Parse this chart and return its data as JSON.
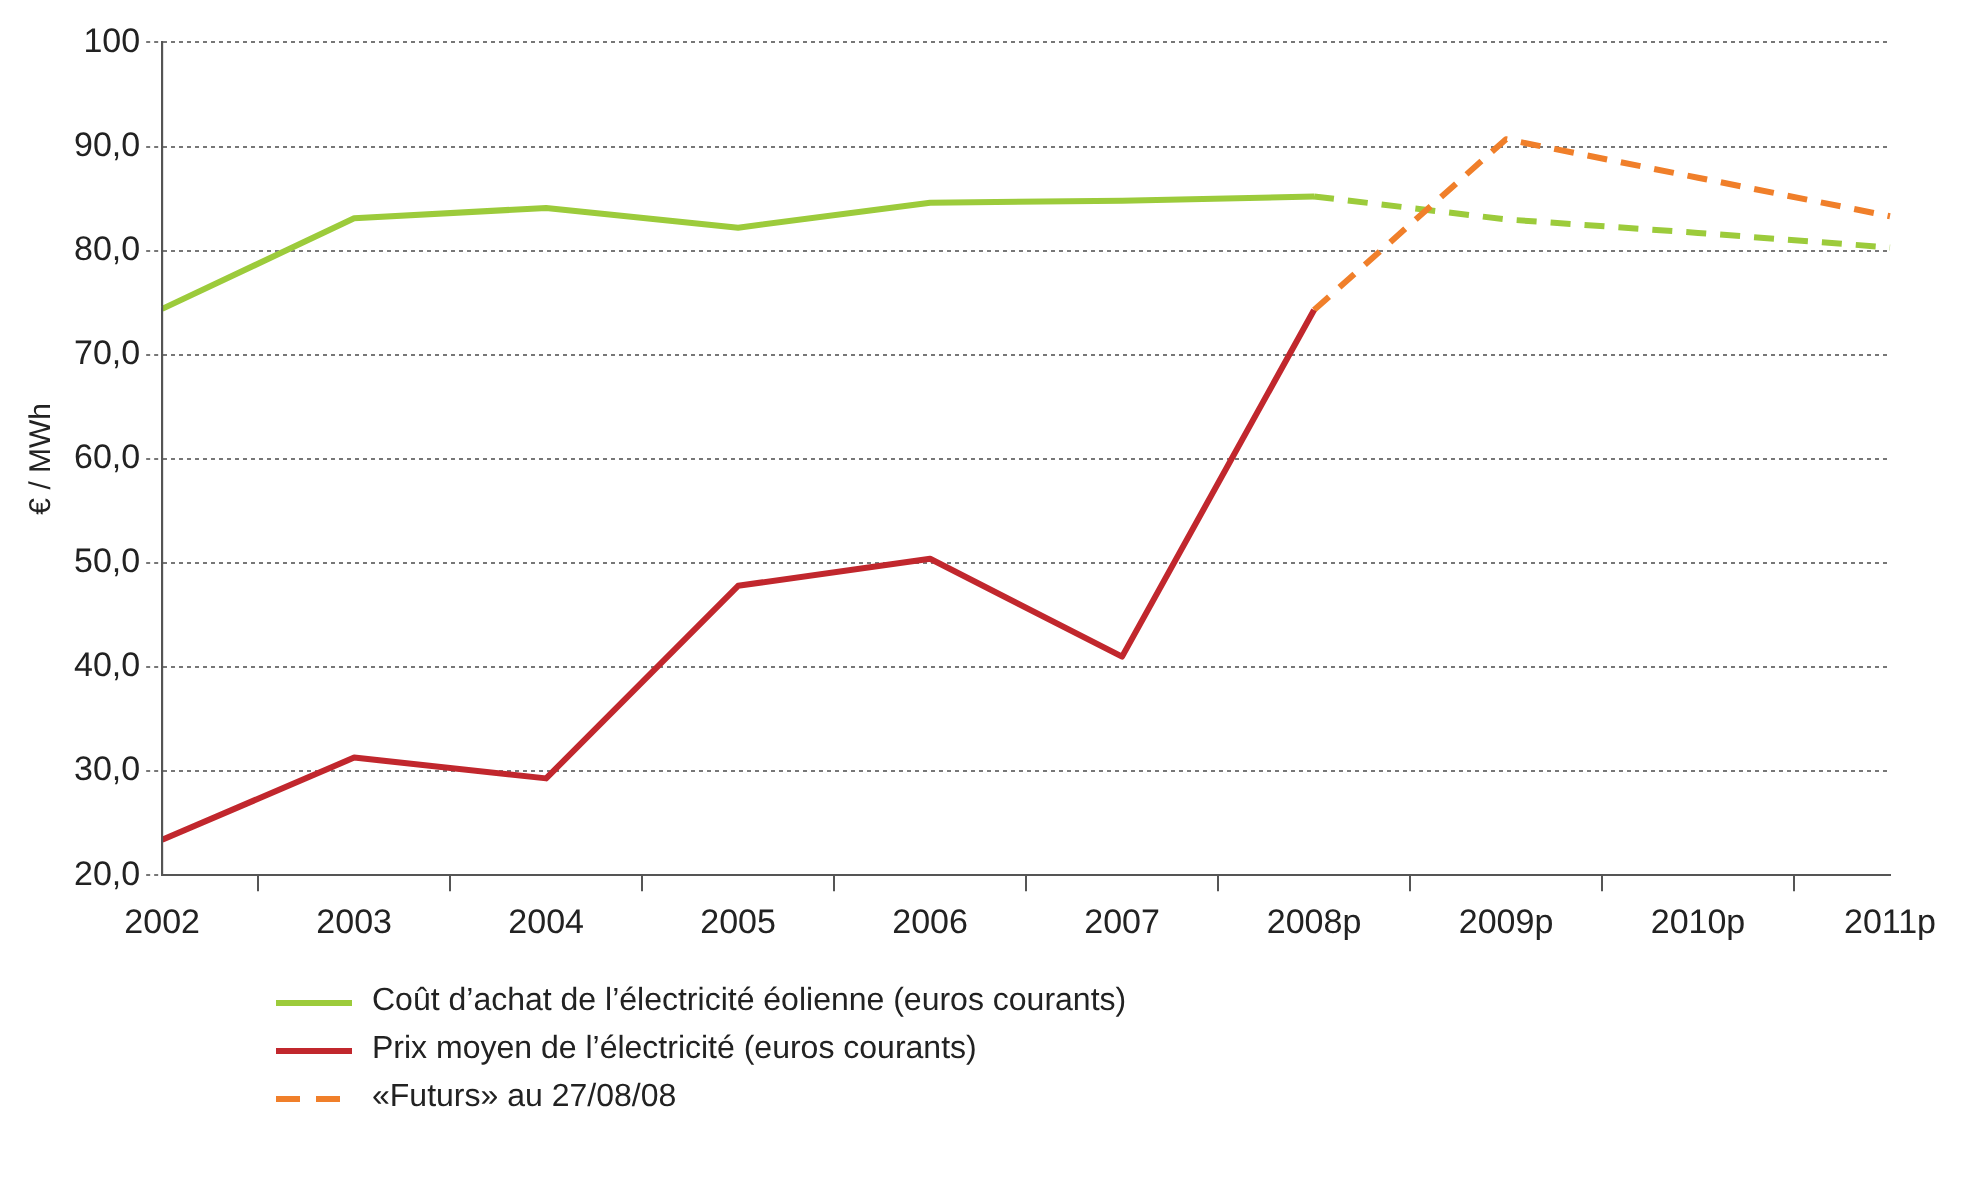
{
  "chart_data": {
    "type": "line",
    "ylabel": "€ / MWh",
    "categories": [
      "2002",
      "2003",
      "2004",
      "2005",
      "2006",
      "2007",
      "2008p",
      "2009p",
      "2010p",
      "2011p"
    ],
    "series": [
      {
        "name": "Coût d’achat de l’électricité éolienne (euros courants)",
        "color": "#9ccb3b",
        "values": [
          74.4,
          83.1,
          84.1,
          82.2,
          84.6,
          84.8,
          85.2,
          null,
          null,
          null
        ]
      },
      {
        "name": "Prix moyen de l’électricité (euros courants)",
        "color": "#c1272d",
        "values": [
          23.4,
          31.3,
          29.3,
          47.8,
          50.4,
          41.0,
          74.3,
          null,
          null,
          null
        ]
      },
      {
        "name": "«Futurs» au 27/08/08",
        "color": "#f07f2a",
        "line_style": "dashed",
        "values": [
          null,
          null,
          null,
          null,
          null,
          null,
          74.3,
          90.7,
          87.0,
          83.3
        ]
      },
      {
        "color": "#9ccb3b",
        "line_style": "dashed",
        "values": [
          null,
          null,
          null,
          null,
          null,
          null,
          85.2,
          83.0,
          81.7,
          80.3
        ]
      }
    ],
    "ylim": [
      20,
      100
    ],
    "yticks": [
      {
        "value": 20,
        "label": "20,0"
      },
      {
        "value": 30,
        "label": "30,0"
      },
      {
        "value": 40,
        "label": "40,0"
      },
      {
        "value": 50,
        "label": "50,0"
      },
      {
        "value": 60,
        "label": "60,0"
      },
      {
        "value": 70,
        "label": "70,0"
      },
      {
        "value": 80,
        "label": "80,0"
      },
      {
        "value": 90,
        "label": "90,0"
      },
      100
    ],
    "grid": "y",
    "legend": "bottom",
    "marker": "none"
  }
}
